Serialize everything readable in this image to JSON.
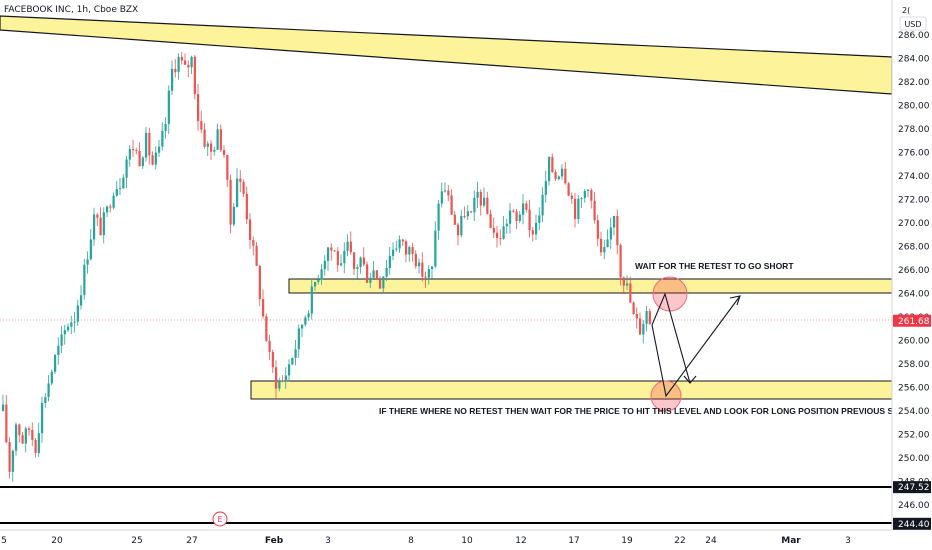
{
  "chart_data": {
    "type": "candlestick",
    "title": "FACEBOOK INC, 1h, Cboe BZX",
    "currency": "USD",
    "currency_top": "2(",
    "ylim": [
      242.9,
      288.3
    ],
    "y_ticks": [
      246,
      248,
      250,
      252,
      254,
      256,
      258,
      260,
      262,
      264,
      266,
      268,
      270,
      272,
      274,
      276,
      278,
      280,
      282,
      284,
      286
    ],
    "x_ticks": [
      "5",
      "20",
      "25",
      "27",
      "Feb",
      "3",
      "8",
      "10",
      "12",
      "17",
      "19",
      "22",
      "24",
      "Mar",
      "3"
    ],
    "price_labels": [
      {
        "value": 261.68,
        "label": "261.68",
        "color": "#f23645"
      },
      {
        "value": 247.52,
        "label": "247.52",
        "color": "#131722"
      },
      {
        "value": 244.4,
        "label": "244.40",
        "color": "#131722"
      }
    ],
    "zones": [
      {
        "name": "resistance-zone",
        "from": 264.1,
        "to": 265.3
      },
      {
        "name": "support-zone",
        "from": 254.9,
        "to": 256.5
      }
    ],
    "horizontal_lines": [
      247.52,
      244.4
    ],
    "annotations": {
      "short": "WAIT FOR THE RETEST TO GO SHORT",
      "long": "IF THERE WHERE NO RETEST THEN WAIT FOR THE PRICE TO HIT THIS LEVEL AND LOOK FOR LONG POSITION PREVIOUS SUPPORT"
    },
    "event_marker": "E",
    "path": [
      [
        0,
        254.0
      ],
      [
        2,
        249.0
      ],
      [
        4,
        253.0
      ],
      [
        6,
        251.5
      ],
      [
        8,
        252.5
      ],
      [
        10,
        251.0
      ],
      [
        12,
        254.5
      ],
      [
        14,
        256.5
      ],
      [
        16,
        258.5
      ],
      [
        18,
        260.0
      ],
      [
        20,
        261.5
      ],
      [
        22,
        262.0
      ],
      [
        24,
        264.5
      ],
      [
        26,
        267.5
      ],
      [
        28,
        270.5
      ],
      [
        30,
        269.5
      ],
      [
        32,
        271.0
      ],
      [
        34,
        273.0
      ],
      [
        36,
        273.5
      ],
      [
        38,
        275.5
      ],
      [
        40,
        276.5
      ],
      [
        42,
        275.5
      ],
      [
        44,
        277.0
      ],
      [
        46,
        275.0
      ],
      [
        48,
        276.0
      ],
      [
        50,
        278.5
      ],
      [
        52,
        283.0
      ],
      [
        54,
        284.0
      ],
      [
        56,
        283.0
      ],
      [
        58,
        284.0
      ],
      [
        60,
        279.0
      ],
      [
        62,
        277.0
      ],
      [
        64,
        276.0
      ],
      [
        66,
        277.5
      ],
      [
        68,
        276.0
      ],
      [
        70,
        270.0
      ],
      [
        72,
        274.0
      ],
      [
        74,
        272.5
      ],
      [
        76,
        269.0
      ],
      [
        78,
        266.0
      ],
      [
        80,
        262.0
      ],
      [
        82,
        258.5
      ],
      [
        84,
        256.5
      ],
      [
        86,
        256.5
      ],
      [
        88,
        258.0
      ],
      [
        90,
        259.5
      ],
      [
        92,
        261.5
      ],
      [
        94,
        263.0
      ],
      [
        96,
        265.0
      ],
      [
        98,
        266.5
      ],
      [
        100,
        268.0
      ],
      [
        102,
        267.5
      ],
      [
        104,
        266.0
      ],
      [
        106,
        268.0
      ],
      [
        108,
        266.0
      ],
      [
        110,
        267.0
      ],
      [
        112,
        265.5
      ],
      [
        114,
        266.0
      ],
      [
        116,
        265.0
      ],
      [
        118,
        266.5
      ],
      [
        120,
        268.0
      ],
      [
        122,
        268.5
      ],
      [
        124,
        267.5
      ],
      [
        126,
        268.0
      ],
      [
        128,
        266.0
      ],
      [
        130,
        265.5
      ],
      [
        132,
        266.0
      ],
      [
        134,
        272.0
      ],
      [
        136,
        273.0
      ],
      [
        138,
        271.0
      ],
      [
        140,
        269.0
      ],
      [
        142,
        271.0
      ],
      [
        144,
        270.5
      ],
      [
        146,
        272.5
      ],
      [
        148,
        271.5
      ],
      [
        150,
        270.0
      ],
      [
        152,
        268.5
      ],
      [
        154,
        269.5
      ],
      [
        156,
        271.0
      ],
      [
        158,
        270.0
      ],
      [
        160,
        272.0
      ],
      [
        162,
        269.0
      ],
      [
        164,
        270.0
      ],
      [
        166,
        272.0
      ],
      [
        168,
        275.0
      ],
      [
        170,
        274.0
      ],
      [
        172,
        275.0
      ],
      [
        174,
        273.0
      ],
      [
        176,
        271.0
      ],
      [
        178,
        272.0
      ],
      [
        180,
        273.5
      ],
      [
        182,
        270.0
      ],
      [
        184,
        267.0
      ],
      [
        186,
        268.0
      ],
      [
        188,
        271.0
      ],
      [
        190,
        266.0
      ],
      [
        192,
        264.5
      ],
      [
        194,
        262.0
      ],
      [
        196,
        261.0
      ],
      [
        198,
        262.5
      ],
      [
        199,
        261.68
      ]
    ]
  }
}
